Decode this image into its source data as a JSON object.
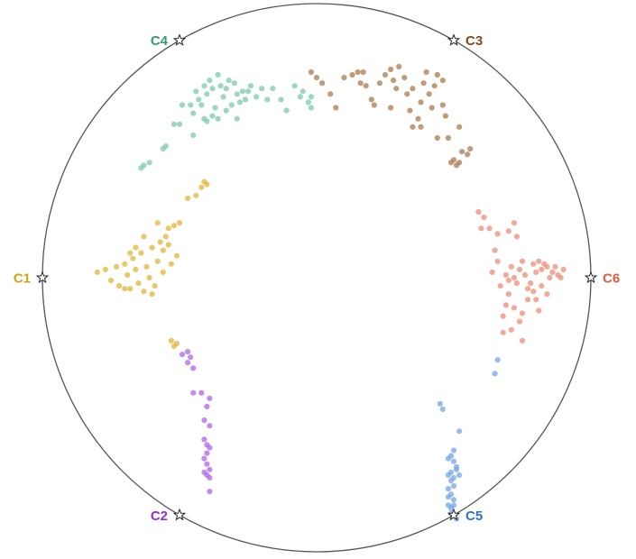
{
  "chart_data": {
    "type": "scatter",
    "title": "",
    "xlabel": "",
    "ylabel": "",
    "xlim": [
      -1.05,
      1.05
    ],
    "ylim": [
      -1.05,
      1.05
    ],
    "grid": false,
    "legend": "none",
    "anchors": [
      {
        "label": "C1",
        "x": -1.0,
        "y": 0.0,
        "color": "#d4a30f",
        "label_side": "left"
      },
      {
        "label": "C2",
        "x": -0.5,
        "y": -0.866,
        "color": "#8e2fd6",
        "label_side": "left"
      },
      {
        "label": "C3",
        "x": 0.5,
        "y": 0.866,
        "color": "#7f4a1d",
        "label_side": "right"
      },
      {
        "label": "C4",
        "x": -0.5,
        "y": 0.866,
        "color": "#2f9a73",
        "label_side": "left"
      },
      {
        "label": "C5",
        "x": 0.5,
        "y": -0.866,
        "color": "#2f72c9",
        "label_side": "right"
      },
      {
        "label": "C6",
        "x": 1.0,
        "y": 0.0,
        "color": "#e05a3c",
        "label_side": "right"
      }
    ],
    "series": [
      {
        "cluster": "C1",
        "color": "#e0b330",
        "points": [
          [
            -0.8,
            0.02
          ],
          [
            -0.77,
            0.03
          ],
          [
            -0.75,
            -0.01
          ],
          [
            -0.73,
            0.04
          ],
          [
            -0.72,
            -0.03
          ],
          [
            -0.7,
            0.05
          ],
          [
            -0.69,
            0.01
          ],
          [
            -0.68,
            -0.04
          ],
          [
            -0.67,
            0.07
          ],
          [
            -0.66,
            0.03
          ],
          [
            -0.65,
            -0.02
          ],
          [
            -0.64,
            0.09
          ],
          [
            -0.63,
            -0.05
          ],
          [
            -0.62,
            0.04
          ],
          [
            -0.61,
            0.0
          ],
          [
            -0.6,
            0.11
          ],
          [
            -0.59,
            -0.03
          ],
          [
            -0.58,
            0.06
          ],
          [
            -0.57,
            0.13
          ],
          [
            -0.56,
            0.02
          ],
          [
            -0.55,
            0.15
          ],
          [
            -0.54,
            0.18
          ],
          [
            -0.53,
            0.05
          ],
          [
            -0.52,
            0.19
          ],
          [
            -0.51,
            0.08
          ],
          [
            -0.7,
            -0.04
          ],
          [
            -0.66,
            0.11
          ],
          [
            -0.63,
            0.15
          ],
          [
            -0.56,
            0.1
          ],
          [
            -0.6,
            -0.06
          ],
          [
            -0.68,
            0.09
          ],
          [
            -0.58,
            0.2
          ],
          [
            -0.54,
            0.12
          ],
          [
            -0.5,
            0.2
          ],
          [
            -0.47,
            0.29
          ],
          [
            -0.44,
            0.3
          ],
          [
            -0.42,
            0.33
          ],
          [
            -0.41,
            0.35
          ],
          [
            -0.4,
            0.34
          ],
          [
            -0.53,
            -0.23
          ],
          [
            -0.52,
            -0.25
          ],
          [
            -0.51,
            -0.24
          ]
        ]
      },
      {
        "cluster": "C2",
        "color": "#a95fe6",
        "points": [
          [
            -0.49,
            -0.28
          ],
          [
            -0.47,
            -0.27
          ],
          [
            -0.46,
            -0.29
          ],
          [
            -0.47,
            -0.31
          ],
          [
            -0.45,
            -0.33
          ],
          [
            -0.45,
            -0.42
          ],
          [
            -0.42,
            -0.42
          ],
          [
            -0.39,
            -0.44
          ],
          [
            -0.4,
            -0.47
          ],
          [
            -0.41,
            -0.52
          ],
          [
            -0.39,
            -0.54
          ],
          [
            -0.41,
            -0.59
          ],
          [
            -0.4,
            -0.61
          ],
          [
            -0.39,
            -0.62
          ],
          [
            -0.4,
            -0.64
          ],
          [
            -0.41,
            -0.66
          ],
          [
            -0.4,
            -0.68
          ],
          [
            -0.39,
            -0.7
          ],
          [
            -0.4,
            -0.72
          ],
          [
            -0.39,
            -0.73
          ],
          [
            -0.41,
            -0.71
          ],
          [
            -0.39,
            -0.78
          ]
        ]
      },
      {
        "cluster": "C3",
        "color": "#a87646",
        "points": [
          [
            -0.02,
            0.75
          ],
          [
            0.0,
            0.73
          ],
          [
            0.02,
            0.71
          ],
          [
            0.05,
            0.67
          ],
          [
            0.07,
            0.62
          ],
          [
            0.1,
            0.73
          ],
          [
            0.13,
            0.74
          ],
          [
            0.15,
            0.75
          ],
          [
            0.17,
            0.75
          ],
          [
            0.16,
            0.71
          ],
          [
            0.18,
            0.7
          ],
          [
            0.2,
            0.65
          ],
          [
            0.21,
            0.63
          ],
          [
            0.23,
            0.71
          ],
          [
            0.25,
            0.74
          ],
          [
            0.27,
            0.76
          ],
          [
            0.28,
            0.72
          ],
          [
            0.29,
            0.69
          ],
          [
            0.3,
            0.77
          ],
          [
            0.32,
            0.73
          ],
          [
            0.33,
            0.67
          ],
          [
            0.34,
            0.61
          ],
          [
            0.35,
            0.69
          ],
          [
            0.35,
            0.55
          ],
          [
            0.37,
            0.58
          ],
          [
            0.38,
            0.64
          ],
          [
            0.39,
            0.71
          ],
          [
            0.4,
            0.75
          ],
          [
            0.41,
            0.67
          ],
          [
            0.42,
            0.62
          ],
          [
            0.43,
            0.7
          ],
          [
            0.44,
            0.51
          ],
          [
            0.46,
            0.63
          ],
          [
            0.47,
            0.59
          ],
          [
            0.48,
            0.51
          ],
          [
            0.5,
            0.43
          ],
          [
            0.51,
            0.41
          ],
          [
            0.52,
            0.42
          ],
          [
            0.53,
            0.46
          ],
          [
            0.55,
            0.45
          ],
          [
            0.56,
            0.47
          ],
          [
            0.52,
            0.55
          ],
          [
            0.46,
            0.72
          ],
          [
            0.38,
            0.55
          ],
          [
            0.27,
            0.62
          ],
          [
            0.44,
            0.74
          ],
          [
            0.49,
            0.42
          ]
        ]
      },
      {
        "cluster": "C4",
        "color": "#74c9a6",
        "points": [
          [
            -0.64,
            0.4
          ],
          [
            -0.63,
            0.41
          ],
          [
            -0.61,
            0.42
          ],
          [
            -0.56,
            0.47
          ],
          [
            -0.55,
            0.48
          ],
          [
            -0.52,
            0.56
          ],
          [
            -0.5,
            0.56
          ],
          [
            -0.49,
            0.63
          ],
          [
            -0.46,
            0.63
          ],
          [
            -0.45,
            0.6
          ],
          [
            -0.44,
            0.68
          ],
          [
            -0.43,
            0.65
          ],
          [
            -0.42,
            0.63
          ],
          [
            -0.41,
            0.7
          ],
          [
            -0.4,
            0.67
          ],
          [
            -0.39,
            0.72
          ],
          [
            -0.38,
            0.69
          ],
          [
            -0.37,
            0.62
          ],
          [
            -0.36,
            0.74
          ],
          [
            -0.35,
            0.7
          ],
          [
            -0.34,
            0.66
          ],
          [
            -0.33,
            0.69
          ],
          [
            -0.32,
            0.72
          ],
          [
            -0.31,
            0.63
          ],
          [
            -0.3,
            0.71
          ],
          [
            -0.29,
            0.67
          ],
          [
            -0.28,
            0.64
          ],
          [
            -0.27,
            0.68
          ],
          [
            -0.26,
            0.65
          ],
          [
            -0.25,
            0.68
          ],
          [
            -0.24,
            0.7
          ],
          [
            -0.22,
            0.66
          ],
          [
            -0.2,
            0.69
          ],
          [
            -0.18,
            0.65
          ],
          [
            -0.16,
            0.69
          ],
          [
            -0.13,
            0.65
          ],
          [
            -0.11,
            0.61
          ],
          [
            -0.08,
            0.7
          ],
          [
            -0.06,
            0.66
          ],
          [
            -0.05,
            0.68
          ],
          [
            -0.03,
            0.64
          ],
          [
            -0.02,
            0.66
          ],
          [
            -0.02,
            0.62
          ],
          [
            -0.36,
            0.58
          ],
          [
            -0.33,
            0.61
          ],
          [
            -0.29,
            0.58
          ],
          [
            -0.38,
            0.59
          ],
          [
            -0.41,
            0.58
          ],
          [
            -0.4,
            0.57
          ],
          [
            -0.45,
            0.52
          ]
        ]
      },
      {
        "cluster": "C5",
        "color": "#6ea2e6",
        "points": [
          [
            0.45,
            -0.46
          ],
          [
            0.46,
            -0.48
          ],
          [
            0.52,
            -0.56
          ],
          [
            0.48,
            -0.66
          ],
          [
            0.5,
            -0.63
          ],
          [
            0.51,
            -0.7
          ],
          [
            0.49,
            -0.71
          ],
          [
            0.5,
            -0.67
          ],
          [
            0.48,
            -0.72
          ],
          [
            0.49,
            -0.74
          ],
          [
            0.5,
            -0.76
          ],
          [
            0.48,
            -0.77
          ],
          [
            0.49,
            -0.79
          ],
          [
            0.5,
            -0.81
          ],
          [
            0.48,
            -0.83
          ],
          [
            0.49,
            -0.86
          ],
          [
            0.51,
            -0.88
          ],
          [
            0.49,
            -0.84
          ],
          [
            0.5,
            -0.73
          ],
          [
            0.51,
            -0.69
          ],
          [
            0.49,
            -0.65
          ],
          [
            0.52,
            -0.72
          ],
          [
            0.5,
            -0.83
          ],
          [
            0.48,
            -0.8
          ],
          [
            0.66,
            -0.3
          ],
          [
            0.65,
            -0.35
          ]
        ]
      },
      {
        "cluster": "C6",
        "color": "#ee8872",
        "points": [
          [
            0.59,
            0.24
          ],
          [
            0.61,
            0.22
          ],
          [
            0.6,
            0.18
          ],
          [
            0.63,
            0.18
          ],
          [
            0.66,
            0.16
          ],
          [
            0.7,
            0.17
          ],
          [
            0.72,
            0.2
          ],
          [
            0.73,
            0.15
          ],
          [
            0.65,
            0.1
          ],
          [
            0.64,
            0.02
          ],
          [
            0.66,
            0.06
          ],
          [
            0.67,
            -0.03
          ],
          [
            0.69,
            0.01
          ],
          [
            0.7,
            -0.01
          ],
          [
            0.71,
            0.04
          ],
          [
            0.72,
            0.0
          ],
          [
            0.73,
            -0.02
          ],
          [
            0.74,
            0.03
          ],
          [
            0.75,
            0.06
          ],
          [
            0.76,
            0.01
          ],
          [
            0.77,
            -0.04
          ],
          [
            0.78,
            -0.02
          ],
          [
            0.79,
            0.05
          ],
          [
            0.8,
            0.02
          ],
          [
            0.81,
            0.06
          ],
          [
            0.82,
            0.03
          ],
          [
            0.83,
            0.05
          ],
          [
            0.84,
            0.04
          ],
          [
            0.85,
            0.0
          ],
          [
            0.86,
            0.02
          ],
          [
            0.87,
            0.04
          ],
          [
            0.88,
            0.01
          ],
          [
            0.89,
            0.0
          ],
          [
            0.9,
            0.03
          ],
          [
            0.69,
            -0.1
          ],
          [
            0.72,
            -0.11
          ],
          [
            0.68,
            -0.14
          ],
          [
            0.75,
            -0.13
          ],
          [
            0.71,
            -0.19
          ],
          [
            0.68,
            -0.2
          ],
          [
            0.79,
            -0.05
          ],
          [
            0.8,
            -0.08
          ],
          [
            0.81,
            -0.12
          ],
          [
            0.82,
            -0.03
          ],
          [
            0.77,
            -0.08
          ],
          [
            0.74,
            -0.16
          ],
          [
            0.7,
            -0.06
          ],
          [
            0.84,
            -0.06
          ],
          [
            0.75,
            -0.23
          ]
        ]
      }
    ]
  }
}
